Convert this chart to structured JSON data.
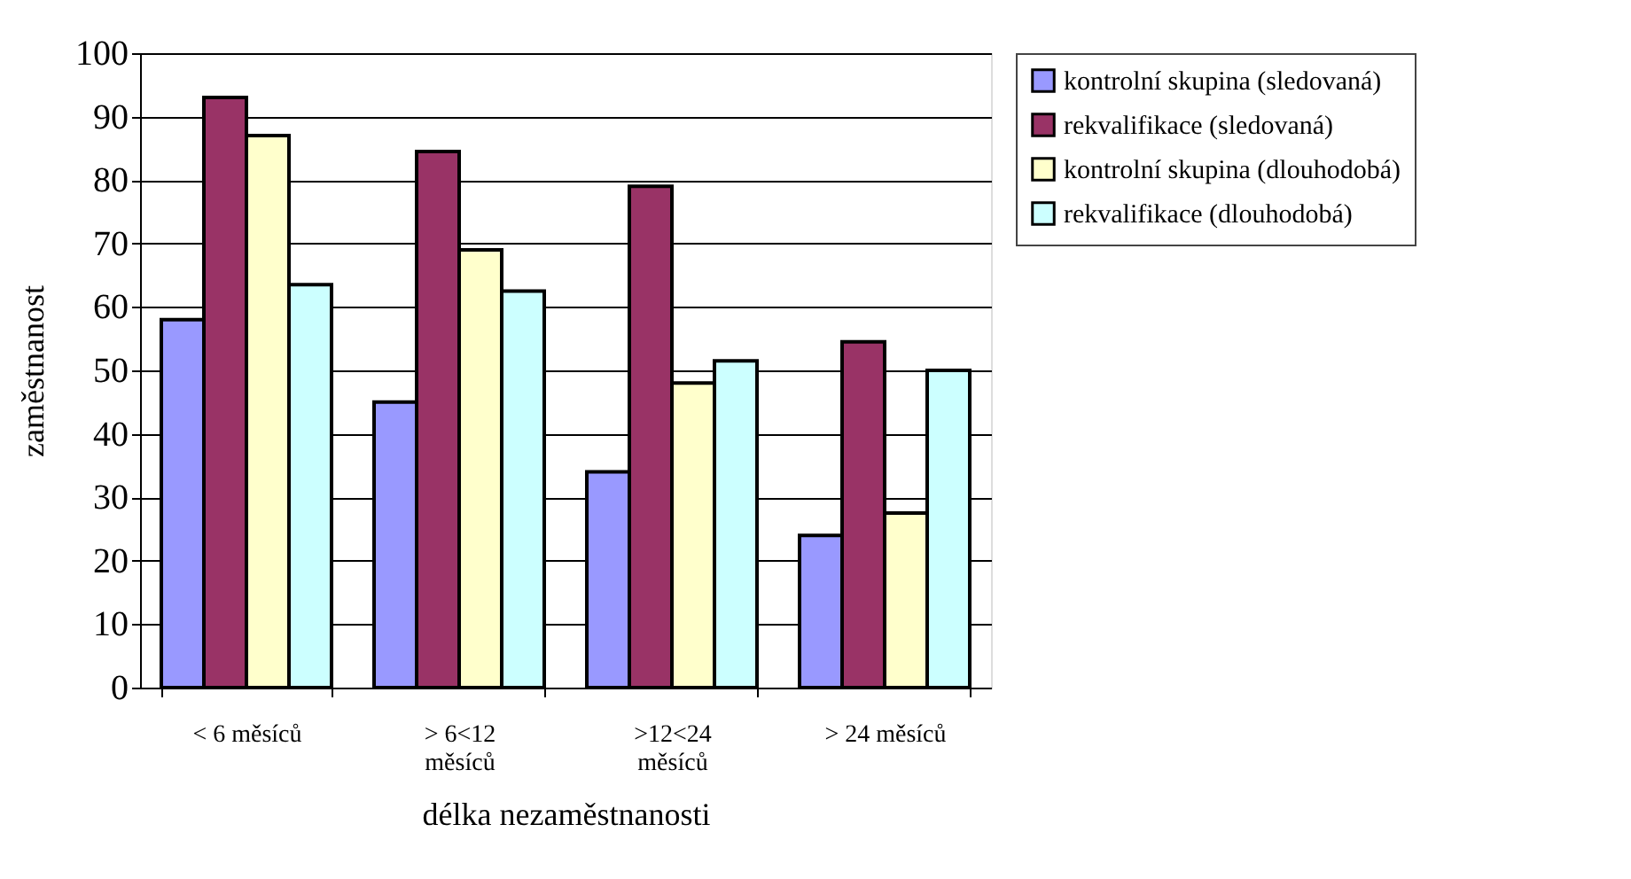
{
  "chart_data": {
    "type": "bar",
    "xlabel": "délka nezaměstnanosti",
    "ylabel": "zaměstnanost",
    "categories": [
      "< 6 měsíců",
      "> 6<12 měsíců",
      ">12<24 měsíců",
      "> 24 měsíců"
    ],
    "series": [
      {
        "name": "kontrolní skupina (sledovaná)",
        "color": "#9999ff",
        "values": [
          58,
          45,
          34,
          24
        ]
      },
      {
        "name": "rekvalifikace (sledovaná)",
        "color": "#993366",
        "values": [
          93,
          84.5,
          79,
          54.5
        ]
      },
      {
        "name": "kontrolní skupina (dlouhodobá)",
        "color": "#ffffcc",
        "values": [
          87,
          69,
          48,
          27.5
        ]
      },
      {
        "name": "rekvalifikace (dlouhodobá)",
        "color": "#ccffff",
        "values": [
          63.5,
          62.5,
          51.5,
          50
        ]
      }
    ],
    "ylim": [
      0,
      100
    ],
    "yticks": [
      0,
      10,
      20,
      30,
      40,
      50,
      60,
      70,
      80,
      90,
      100
    ],
    "grid": "y",
    "legend": "right"
  }
}
